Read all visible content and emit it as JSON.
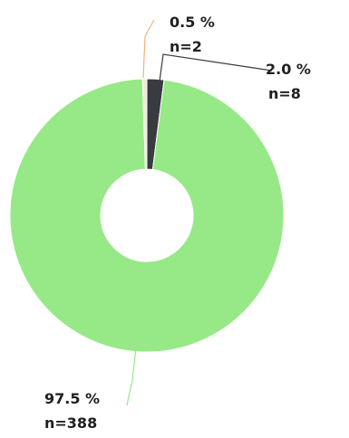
{
  "chart_data": {
    "type": "pie",
    "variant": "donut",
    "start_angle_deg": 0,
    "direction": "clockwise",
    "slices": [
      {
        "label_pct": "2.0 %",
        "label_n": "n=8",
        "value": 8,
        "color": "#3a3b40"
      },
      {
        "label_pct": "97.5 %",
        "label_n": "n=388",
        "value": 388,
        "color": "#96e986"
      },
      {
        "label_pct": "0.5 %",
        "label_n": "n=2",
        "value": 2,
        "color": "#f0e9d6",
        "leader_color": "#f4b07c"
      }
    ],
    "leader_colors": [
      "#3b3b3b",
      "#96e986",
      "#f4b07c"
    ]
  }
}
